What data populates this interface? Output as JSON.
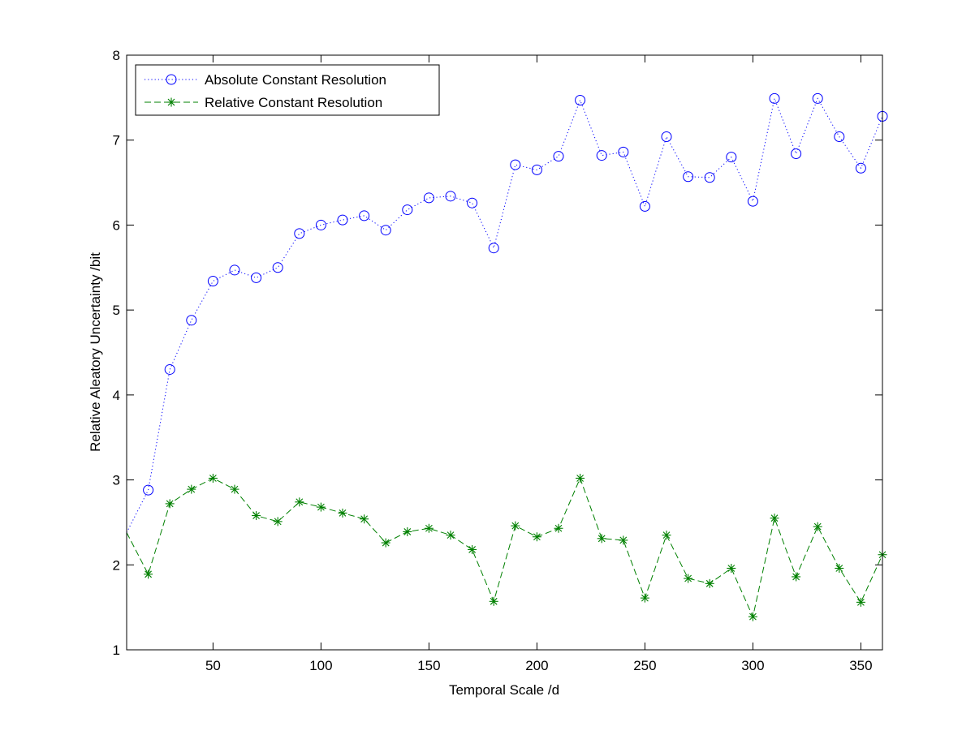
{
  "chart_data": {
    "type": "line",
    "title": "",
    "xlabel": "Temporal Scale /d",
    "ylabel": "Relative Aleatory Uncertainty /bit",
    "xlim": [
      10,
      360
    ],
    "ylim": [
      1,
      8
    ],
    "xticks": [
      50,
      100,
      150,
      200,
      250,
      300,
      350
    ],
    "yticks": [
      1,
      2,
      3,
      4,
      5,
      6,
      7,
      8
    ],
    "grid": false,
    "legend_position": "top-left",
    "x": [
      10,
      20,
      30,
      40,
      50,
      60,
      70,
      80,
      90,
      100,
      110,
      120,
      130,
      140,
      150,
      160,
      170,
      180,
      190,
      200,
      210,
      220,
      230,
      240,
      250,
      260,
      270,
      280,
      290,
      300,
      310,
      320,
      330,
      340,
      350,
      360
    ],
    "series": [
      {
        "name": "Absolute Constant Resolution",
        "color": "#0000ff",
        "line_style": "dotted",
        "marker": "circle",
        "marker_from_index": 1,
        "values": [
          2.38,
          2.88,
          4.3,
          4.88,
          5.34,
          5.47,
          5.38,
          5.5,
          5.9,
          6.0,
          6.06,
          6.11,
          5.94,
          6.18,
          6.32,
          6.34,
          6.26,
          5.73,
          6.71,
          6.65,
          6.81,
          7.47,
          6.82,
          6.86,
          6.22,
          7.04,
          6.57,
          6.56,
          6.8,
          6.28,
          7.49,
          6.84,
          7.49,
          7.04,
          6.67,
          7.28
        ]
      },
      {
        "name": "Relative Constant Resolution",
        "color": "#008000",
        "line_style": "dashed",
        "marker": "star",
        "marker_from_index": 1,
        "values": [
          2.38,
          1.89,
          2.72,
          2.89,
          3.02,
          2.89,
          2.58,
          2.51,
          2.74,
          2.68,
          2.61,
          2.54,
          2.26,
          2.39,
          2.43,
          2.35,
          2.18,
          1.57,
          2.46,
          2.33,
          2.43,
          3.02,
          2.31,
          2.29,
          1.61,
          2.35,
          1.84,
          1.78,
          1.96,
          1.39,
          2.55,
          1.86,
          2.45,
          1.96,
          1.56,
          2.12
        ]
      }
    ]
  }
}
